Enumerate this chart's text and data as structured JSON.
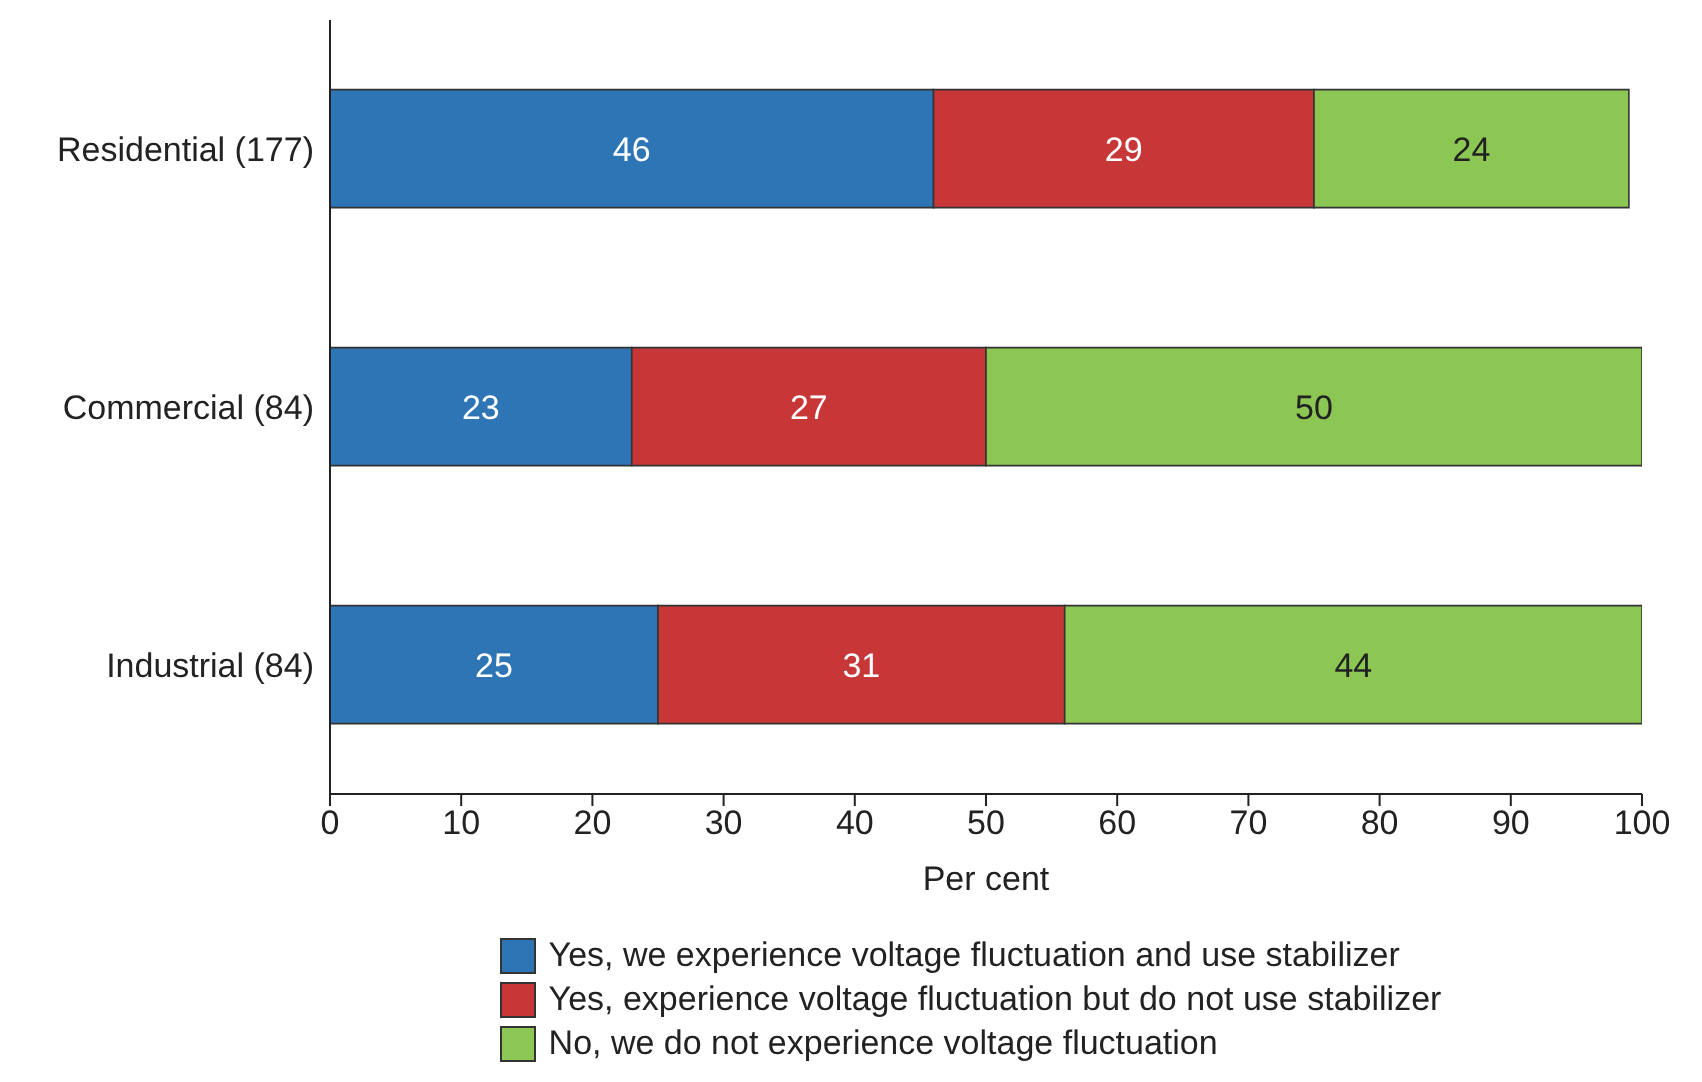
{
  "chart_data": {
    "type": "bar",
    "orientation": "horizontal",
    "stacked": true,
    "xlabel": "Per cent",
    "categories": [
      "Residential (177)",
      "Commercial (84)",
      "Industrial (84)"
    ],
    "series": [
      {
        "name": "Yes, we experience voltage fluctuation and use stabilizer",
        "color": "#2e75b6",
        "values": [
          46,
          23,
          25
        ]
      },
      {
        "name": "Yes, experience voltage fluctuation but do not use stabilizer",
        "color": "#c83737",
        "values": [
          29,
          27,
          31
        ]
      },
      {
        "name": "No, we do not experience voltage fluctuation",
        "color": "#8dc753",
        "values": [
          24,
          50,
          44
        ]
      }
    ],
    "xlim": [
      0,
      100
    ],
    "xticks": [
      0,
      10,
      20,
      30,
      40,
      50,
      60,
      70,
      80,
      90,
      100
    ],
    "data_labels": true,
    "grid": false,
    "legend": "bottom"
  }
}
